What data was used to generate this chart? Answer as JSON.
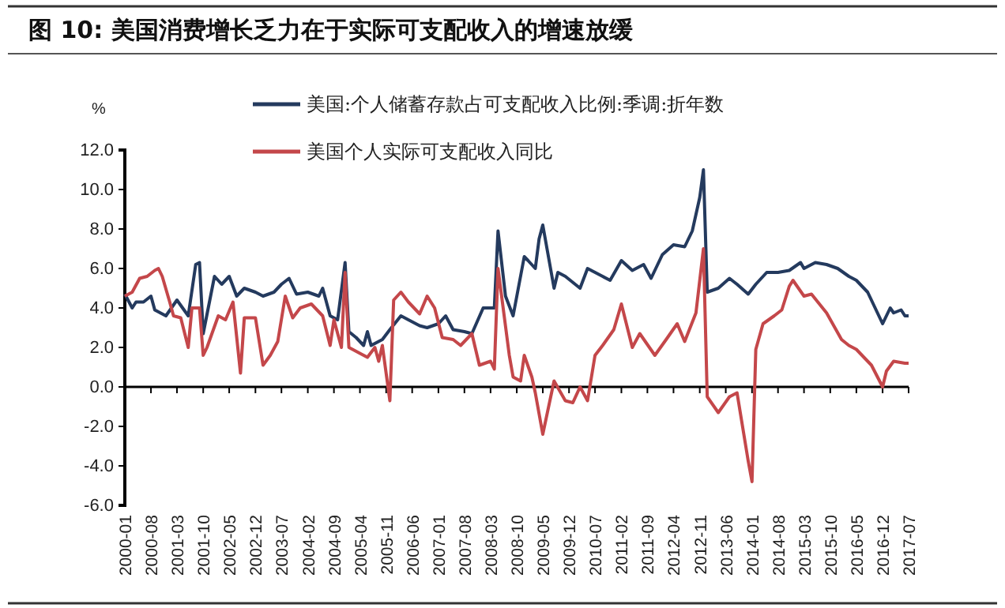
{
  "chart_data": {
    "type": "line",
    "title": "图 10:  美国消费增长乏力在于实际可支配收入的增速放缓",
    "ylabel": "%",
    "legend": "top",
    "grid": false,
    "ref_lines": [
      {
        "axis": "y",
        "value": 0,
        "color": "#000000"
      }
    ],
    "xlim": [
      "2000-01",
      "2017-07"
    ],
    "xticks": [
      "2000-01",
      "2000-08",
      "2001-03",
      "2001-10",
      "2002-05",
      "2002-12",
      "2003-07",
      "2004-02",
      "2004-09",
      "2005-04",
      "2005-11",
      "2006-06",
      "2007-01",
      "2007-08",
      "2008-03",
      "2008-10",
      "2009-05",
      "2009-12",
      "2010-07",
      "2011-02",
      "2011-09",
      "2012-04",
      "2012-11",
      "2013-06",
      "2014-01",
      "2014-08",
      "2015-03",
      "2015-10",
      "2016-05",
      "2016-12",
      "2017-07"
    ],
    "ylim": [
      -6,
      12
    ],
    "yticks": [
      {
        "value": -6,
        "label": "-6.0"
      },
      {
        "value": -4,
        "label": "-4.0"
      },
      {
        "value": -2,
        "label": "-2.0"
      },
      {
        "value": 0,
        "label": "0.0"
      },
      {
        "value": 2,
        "label": "2.0"
      },
      {
        "value": 4,
        "label": "4.0"
      },
      {
        "value": 6,
        "label": "6.0"
      },
      {
        "value": 8,
        "label": "8.0"
      },
      {
        "value": 10,
        "label": "10.0"
      },
      {
        "value": 12,
        "label": "12.0"
      }
    ],
    "series": [
      {
        "name": "美国:个人储蓄存款占可支配收入比例:季调:折年数",
        "color": "#243a5e",
        "x": [
          "2000-01",
          "2000-03",
          "2000-04",
          "2000-06",
          "2000-08",
          "2000-09",
          "2000-12",
          "2001-03",
          "2001-06",
          "2001-08",
          "2001-09",
          "2001-10",
          "2002-01",
          "2002-03",
          "2002-05",
          "2002-07",
          "2002-09",
          "2002-12",
          "2003-02",
          "2003-05",
          "2003-07",
          "2003-09",
          "2003-11",
          "2004-02",
          "2004-05",
          "2004-06",
          "2004-08",
          "2004-10",
          "2004-12",
          "2005-01",
          "2005-03",
          "2005-05",
          "2005-06",
          "2005-07",
          "2005-10",
          "2005-12",
          "2006-03",
          "2006-05",
          "2006-08",
          "2006-10",
          "2007-01",
          "2007-03",
          "2007-05",
          "2007-08",
          "2007-10",
          "2008-01",
          "2008-04",
          "2008-05",
          "2008-07",
          "2008-09",
          "2008-12",
          "2009-01",
          "2009-03",
          "2009-04",
          "2009-05",
          "2009-08",
          "2009-09",
          "2009-11",
          "2010-03",
          "2010-05",
          "2010-09",
          "2010-11",
          "2011-02",
          "2011-05",
          "2011-08",
          "2011-10",
          "2012-01",
          "2012-04",
          "2012-07",
          "2012-09",
          "2012-11",
          "2012-12",
          "2013-01",
          "2013-04",
          "2013-07",
          "2013-09",
          "2013-12",
          "2014-02",
          "2014-05",
          "2014-08",
          "2014-11",
          "2015-02",
          "2015-03",
          "2015-06",
          "2015-09",
          "2015-12",
          "2016-03",
          "2016-05",
          "2016-08",
          "2016-10",
          "2016-12",
          "2017-02",
          "2017-03",
          "2017-05",
          "2017-06",
          "2017-07"
        ],
        "values": [
          4.7,
          4.0,
          4.3,
          4.3,
          4.6,
          3.9,
          3.6,
          4.4,
          3.6,
          6.2,
          6.3,
          2.7,
          5.6,
          5.2,
          5.6,
          4.6,
          5.0,
          4.8,
          4.6,
          4.8,
          5.2,
          5.5,
          4.7,
          4.8,
          4.6,
          5.0,
          3.6,
          3.4,
          6.3,
          2.8,
          2.5,
          2.1,
          2.8,
          2.1,
          2.4,
          2.9,
          3.6,
          3.4,
          3.1,
          3.0,
          3.2,
          3.6,
          2.9,
          2.8,
          2.7,
          4.0,
          4.0,
          7.9,
          4.6,
          3.6,
          6.6,
          6.4,
          6.0,
          7.5,
          8.2,
          5.0,
          5.8,
          5.6,
          5.0,
          6.0,
          5.6,
          5.4,
          6.4,
          5.9,
          6.2,
          5.5,
          6.7,
          7.2,
          7.1,
          7.9,
          9.6,
          11.0,
          4.8,
          5.0,
          5.5,
          5.2,
          4.7,
          5.2,
          5.8,
          5.8,
          5.9,
          6.3,
          6.0,
          6.3,
          6.2,
          6.0,
          5.6,
          5.4,
          4.8,
          4.0,
          3.2,
          4.0,
          3.75,
          3.9,
          3.6,
          3.6
        ]
      },
      {
        "name": "美国个人实际可支配收入同比",
        "color": "#c4474a",
        "x": [
          "2000-01",
          "2000-03",
          "2000-05",
          "2000-07",
          "2000-09",
          "2000-10",
          "2000-11",
          "2001-01",
          "2001-02",
          "2001-04",
          "2001-06",
          "2001-07",
          "2001-09",
          "2001-10",
          "2001-11",
          "2002-02",
          "2002-04",
          "2002-06",
          "2002-08",
          "2002-09",
          "2002-12",
          "2003-02",
          "2003-04",
          "2003-06",
          "2003-08",
          "2003-10",
          "2003-12",
          "2004-03",
          "2004-06",
          "2004-08",
          "2004-09",
          "2004-11",
          "2004-12",
          "2005-01",
          "2005-04",
          "2005-06",
          "2005-08",
          "2005-09",
          "2005-10",
          "2005-12",
          "2006-01",
          "2006-03",
          "2006-05",
          "2006-08",
          "2006-10",
          "2006-12",
          "2007-02",
          "2007-05",
          "2007-07",
          "2007-10",
          "2007-12",
          "2008-03",
          "2008-04",
          "2008-05",
          "2008-08",
          "2008-09",
          "2008-11",
          "2008-12",
          "2009-02",
          "2009-03",
          "2009-05",
          "2009-08",
          "2009-11",
          "2010-01",
          "2010-03",
          "2010-05",
          "2010-07",
          "2010-09",
          "2010-12",
          "2011-02",
          "2011-05",
          "2011-07",
          "2011-11",
          "2012-02",
          "2012-05",
          "2012-07",
          "2012-10",
          "2012-12",
          "2013-01",
          "2013-04",
          "2013-07",
          "2013-09",
          "2013-12",
          "2014-01",
          "2014-02",
          "2014-04",
          "2014-07",
          "2014-09",
          "2014-11",
          "2014-12",
          "2015-03",
          "2015-05",
          "2015-09",
          "2016-01",
          "2016-03",
          "2016-05",
          "2016-09",
          "2016-12",
          "2017-01",
          "2017-03",
          "2017-06",
          "2017-07"
        ],
        "values": [
          4.6,
          4.8,
          5.5,
          5.6,
          5.9,
          6.0,
          5.6,
          4.3,
          3.6,
          3.5,
          2.0,
          4.0,
          4.0,
          1.6,
          2.0,
          3.6,
          3.4,
          4.3,
          0.7,
          3.5,
          3.5,
          1.1,
          1.6,
          2.3,
          4.6,
          3.5,
          4.0,
          4.2,
          3.6,
          2.1,
          3.4,
          2.0,
          5.8,
          2.0,
          1.7,
          1.5,
          2.0,
          1.3,
          2.1,
          -0.7,
          4.4,
          4.8,
          4.3,
          3.7,
          4.6,
          4.0,
          2.5,
          2.4,
          2.1,
          2.7,
          1.1,
          1.3,
          0.9,
          6.0,
          1.6,
          0.5,
          0.3,
          1.6,
          0.5,
          -0.3,
          -2.4,
          0.3,
          -0.7,
          -0.8,
          0.0,
          -0.7,
          1.6,
          2.1,
          2.9,
          4.2,
          2.0,
          2.7,
          1.6,
          2.4,
          3.2,
          2.3,
          3.75,
          7.0,
          -0.5,
          -1.3,
          -0.5,
          -0.3,
          -3.75,
          -4.8,
          1.9,
          3.2,
          3.6,
          3.9,
          5.1,
          5.4,
          4.6,
          4.7,
          3.75,
          2.4,
          2.1,
          1.9,
          1.1,
          0.0,
          0.8,
          1.3,
          1.2,
          1.2
        ]
      }
    ]
  }
}
